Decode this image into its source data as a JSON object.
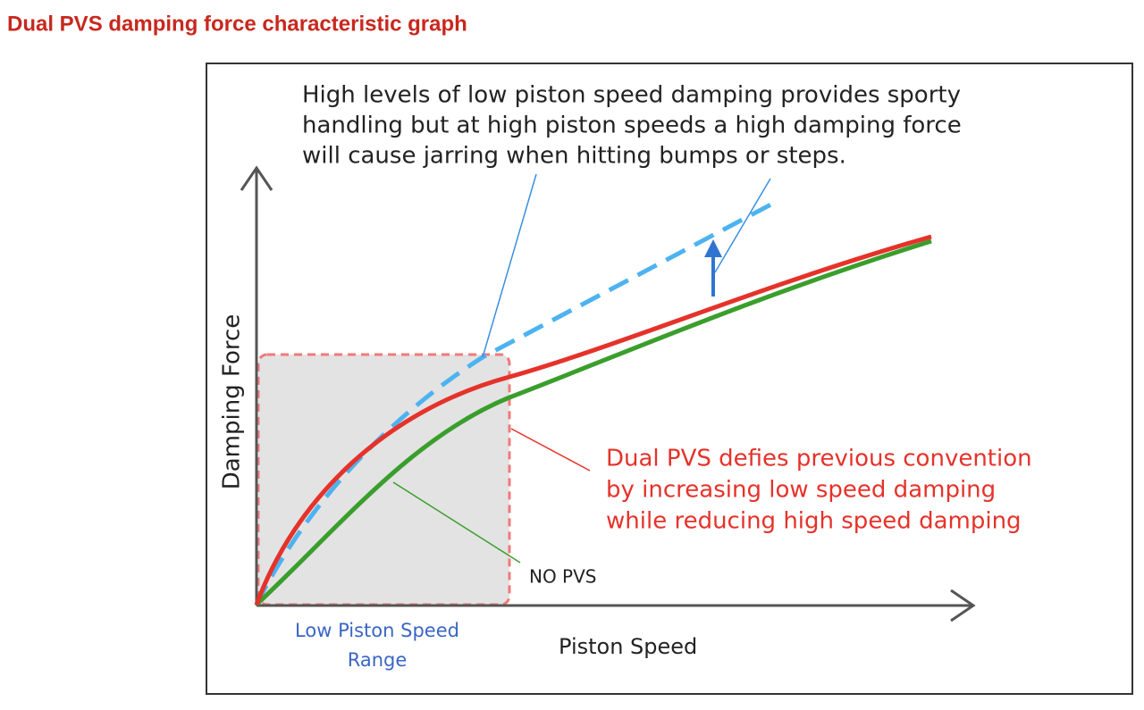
{
  "title": "Dual PVS damping force characteristic graph",
  "diagram": {
    "y_axis_label": "Damping Force",
    "x_axis_label": "Piston Speed",
    "range_label": [
      "Low Piston Speed",
      "Range"
    ],
    "callout_top": [
      "High levels of low piston speed damping provides sporty",
      "handling but at high piston speeds a high damping force",
      "will cause jarring when hitting bumps or steps."
    ],
    "callout_dual_pvs": [
      "Dual PVS defies previous convention",
      "by increasing low speed damping",
      "while reducing high speed damping"
    ],
    "callout_no_pvs": "NO PVS"
  }
}
